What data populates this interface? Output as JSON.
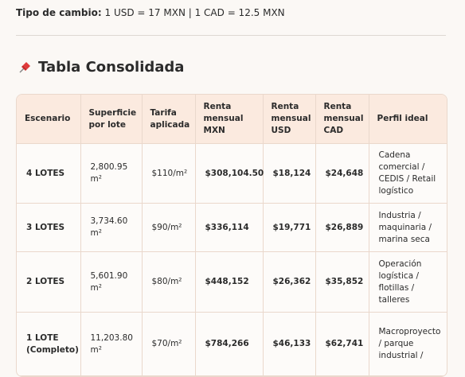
{
  "exchange": {
    "label": "Tipo de cambio:",
    "text": "1 USD = 17 MXN | 1 CAD = 12.5 MXN"
  },
  "heading": "Tabla Consolidada",
  "table": {
    "headers": [
      "Escenario",
      "Superficie por lote",
      "Tarifa aplicada",
      "Renta mensual MXN",
      "Renta mensual USD",
      "Renta mensual CAD",
      "Perfil ideal"
    ],
    "rows": [
      [
        "4 LOTES",
        "2,800.95 m²",
        "$110/m²",
        "$308,104.50",
        "$18,124",
        "$24,648",
        "Cadena comercial / CEDIS / Retail logístico"
      ],
      [
        "3 LOTES",
        "3,734.60 m²",
        "$90/m²",
        "$336,114",
        "$19,771",
        "$26,889",
        "Industria / maquinaria / marina seca"
      ],
      [
        "2 LOTES",
        "5,601.90 m²",
        "$80/m²",
        "$448,152",
        "$26,362",
        "$35,852",
        "Operación logística / flotillas / talleres"
      ],
      [
        "1 LOTE (Completo)",
        "11,203.80 m²",
        "$70/m²",
        "$784,266",
        "$46,133",
        "$62,741",
        "Macroproyecto / parque industrial /"
      ]
    ]
  }
}
